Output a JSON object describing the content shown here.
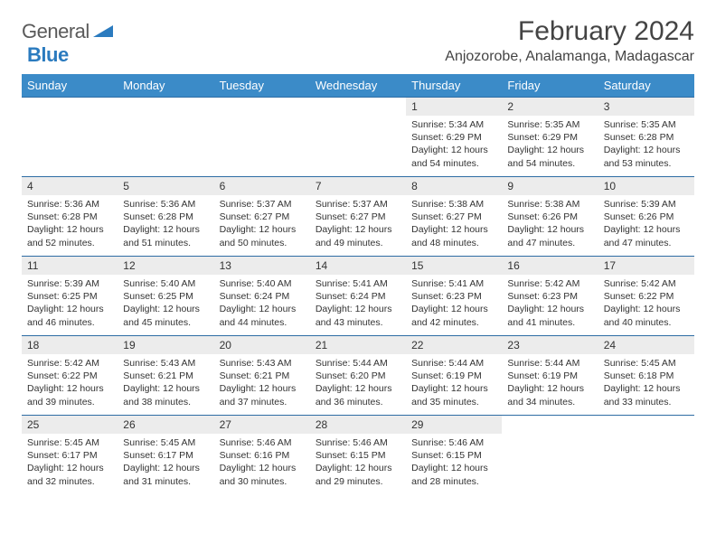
{
  "logo": {
    "text1": "General",
    "text2": "Blue"
  },
  "title": "February 2024",
  "location": "Anjozorobe, Analamanga, Madagascar",
  "colors": {
    "header_bg": "#3b8bc8",
    "header_text": "#ffffff",
    "row_border": "#2e6da4",
    "daynum_bg": "#ececec",
    "logo_gray": "#5a5a5a",
    "logo_blue": "#2b7bbf"
  },
  "weekdays": [
    "Sunday",
    "Monday",
    "Tuesday",
    "Wednesday",
    "Thursday",
    "Friday",
    "Saturday"
  ],
  "startOffset": 4,
  "daysInMonth": 29,
  "days": {
    "1": {
      "sr": "5:34 AM",
      "ss": "6:29 PM",
      "dl": "12 hours and 54 minutes."
    },
    "2": {
      "sr": "5:35 AM",
      "ss": "6:29 PM",
      "dl": "12 hours and 54 minutes."
    },
    "3": {
      "sr": "5:35 AM",
      "ss": "6:28 PM",
      "dl": "12 hours and 53 minutes."
    },
    "4": {
      "sr": "5:36 AM",
      "ss": "6:28 PM",
      "dl": "12 hours and 52 minutes."
    },
    "5": {
      "sr": "5:36 AM",
      "ss": "6:28 PM",
      "dl": "12 hours and 51 minutes."
    },
    "6": {
      "sr": "5:37 AM",
      "ss": "6:27 PM",
      "dl": "12 hours and 50 minutes."
    },
    "7": {
      "sr": "5:37 AM",
      "ss": "6:27 PM",
      "dl": "12 hours and 49 minutes."
    },
    "8": {
      "sr": "5:38 AM",
      "ss": "6:27 PM",
      "dl": "12 hours and 48 minutes."
    },
    "9": {
      "sr": "5:38 AM",
      "ss": "6:26 PM",
      "dl": "12 hours and 47 minutes."
    },
    "10": {
      "sr": "5:39 AM",
      "ss": "6:26 PM",
      "dl": "12 hours and 47 minutes."
    },
    "11": {
      "sr": "5:39 AM",
      "ss": "6:25 PM",
      "dl": "12 hours and 46 minutes."
    },
    "12": {
      "sr": "5:40 AM",
      "ss": "6:25 PM",
      "dl": "12 hours and 45 minutes."
    },
    "13": {
      "sr": "5:40 AM",
      "ss": "6:24 PM",
      "dl": "12 hours and 44 minutes."
    },
    "14": {
      "sr": "5:41 AM",
      "ss": "6:24 PM",
      "dl": "12 hours and 43 minutes."
    },
    "15": {
      "sr": "5:41 AM",
      "ss": "6:23 PM",
      "dl": "12 hours and 42 minutes."
    },
    "16": {
      "sr": "5:42 AM",
      "ss": "6:23 PM",
      "dl": "12 hours and 41 minutes."
    },
    "17": {
      "sr": "5:42 AM",
      "ss": "6:22 PM",
      "dl": "12 hours and 40 minutes."
    },
    "18": {
      "sr": "5:42 AM",
      "ss": "6:22 PM",
      "dl": "12 hours and 39 minutes."
    },
    "19": {
      "sr": "5:43 AM",
      "ss": "6:21 PM",
      "dl": "12 hours and 38 minutes."
    },
    "20": {
      "sr": "5:43 AM",
      "ss": "6:21 PM",
      "dl": "12 hours and 37 minutes."
    },
    "21": {
      "sr": "5:44 AM",
      "ss": "6:20 PM",
      "dl": "12 hours and 36 minutes."
    },
    "22": {
      "sr": "5:44 AM",
      "ss": "6:19 PM",
      "dl": "12 hours and 35 minutes."
    },
    "23": {
      "sr": "5:44 AM",
      "ss": "6:19 PM",
      "dl": "12 hours and 34 minutes."
    },
    "24": {
      "sr": "5:45 AM",
      "ss": "6:18 PM",
      "dl": "12 hours and 33 minutes."
    },
    "25": {
      "sr": "5:45 AM",
      "ss": "6:17 PM",
      "dl": "12 hours and 32 minutes."
    },
    "26": {
      "sr": "5:45 AM",
      "ss": "6:17 PM",
      "dl": "12 hours and 31 minutes."
    },
    "27": {
      "sr": "5:46 AM",
      "ss": "6:16 PM",
      "dl": "12 hours and 30 minutes."
    },
    "28": {
      "sr": "5:46 AM",
      "ss": "6:15 PM",
      "dl": "12 hours and 29 minutes."
    },
    "29": {
      "sr": "5:46 AM",
      "ss": "6:15 PM",
      "dl": "12 hours and 28 minutes."
    }
  },
  "labels": {
    "sunrise": "Sunrise:",
    "sunset": "Sunset:",
    "daylight": "Daylight:"
  }
}
